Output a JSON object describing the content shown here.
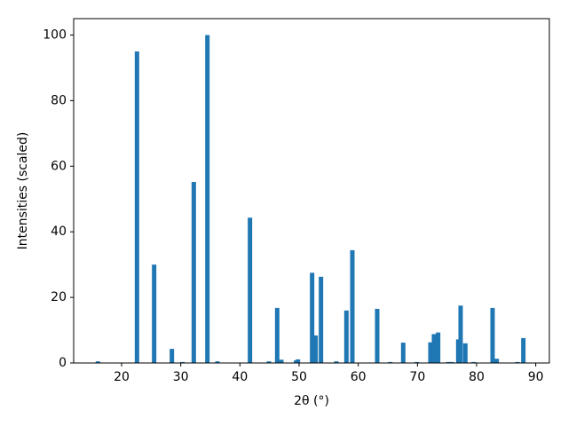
{
  "chart_data": {
    "type": "bar",
    "xlabel": "2θ (°)",
    "ylabel": "Intensities (scaled)",
    "x": [
      16.0,
      22.6,
      25.5,
      28.5,
      30.3,
      32.2,
      34.5,
      36.2,
      41.7,
      44.9,
      46.3,
      47.0,
      49.5,
      49.8,
      52.2,
      52.8,
      53.7,
      56.3,
      58.0,
      59.0,
      63.2,
      65.4,
      67.6,
      69.9,
      72.2,
      72.8,
      73.5,
      75.2,
      75.8,
      76.9,
      77.3,
      78.1,
      79.5,
      82.7,
      83.4,
      86.9,
      87.9
    ],
    "values": [
      0.5,
      95,
      30,
      4.3,
      0.3,
      55.2,
      100,
      0.5,
      44.3,
      0.5,
      16.8,
      1.0,
      0.8,
      1.1,
      27.5,
      8.4,
      26.3,
      0.5,
      16,
      34.4,
      16.5,
      0.3,
      6.2,
      0.3,
      6.3,
      8.8,
      9.3,
      0.3,
      0.3,
      7.2,
      17.5,
      6,
      0.3,
      16.8,
      1.3,
      0.3,
      7.6
    ],
    "color": "#1f77b4",
    "xlim": [
      11.9,
      92.3
    ],
    "xticks": [
      20,
      30,
      40,
      50,
      60,
      70,
      80,
      90
    ],
    "ylim": [
      0,
      105
    ],
    "yticks": [
      0,
      20,
      40,
      60,
      80,
      100
    ],
    "grid": false
  }
}
